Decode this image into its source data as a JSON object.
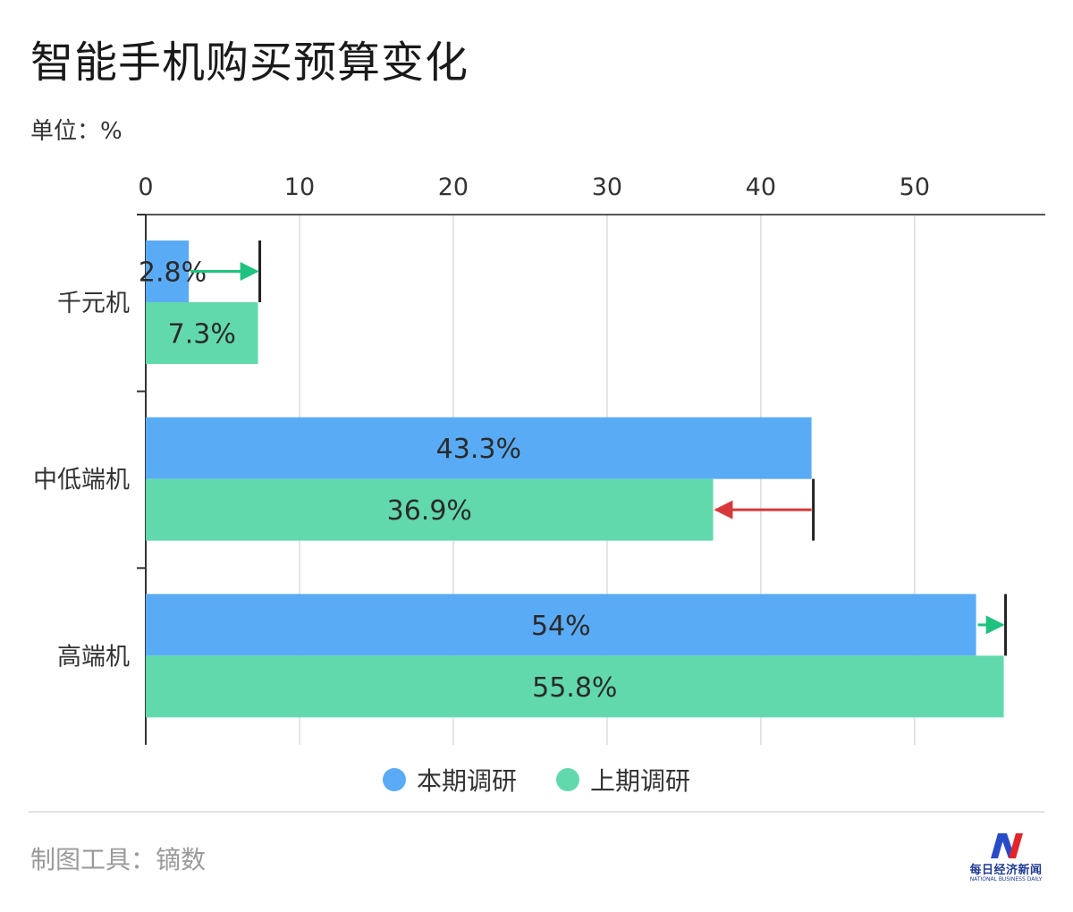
{
  "title": "智能手机购买预算变化",
  "unit_label": "单位：%",
  "source_label": "制图工具：镝数",
  "logo": {
    "cn": "每日经济新闻",
    "en": "NATIONAL BUSINESS DAILY"
  },
  "colors": {
    "current": "#5aabf5",
    "previous": "#62d9ad",
    "increase_arrow": "#1fc27f",
    "decrease_arrow": "#d9383a"
  },
  "chart_data": {
    "type": "bar",
    "orientation": "horizontal",
    "categories": [
      "千元机",
      "中低端机",
      "高端机"
    ],
    "series": [
      {
        "name": "本期调研",
        "values": [
          2.8,
          43.3,
          54
        ],
        "labels": [
          "2.8%",
          "43.3%",
          "54%"
        ]
      },
      {
        "name": "上期调研",
        "values": [
          7.3,
          36.9,
          55.8
        ],
        "labels": [
          "7.3%",
          "36.9%",
          "55.8%"
        ]
      }
    ],
    "xlim": [
      0,
      58.5
    ],
    "xticks": [
      0,
      10,
      20,
      30,
      40,
      50
    ],
    "grid": true,
    "legend_position": "bottom",
    "change_arrows": [
      {
        "category": "千元机",
        "from": 2.8,
        "to": 7.3,
        "direction": "increase"
      },
      {
        "category": "中低端机",
        "from": 43.3,
        "to": 36.9,
        "direction": "decrease"
      },
      {
        "category": "高端机",
        "from": 54,
        "to": 55.8,
        "direction": "increase"
      }
    ]
  }
}
